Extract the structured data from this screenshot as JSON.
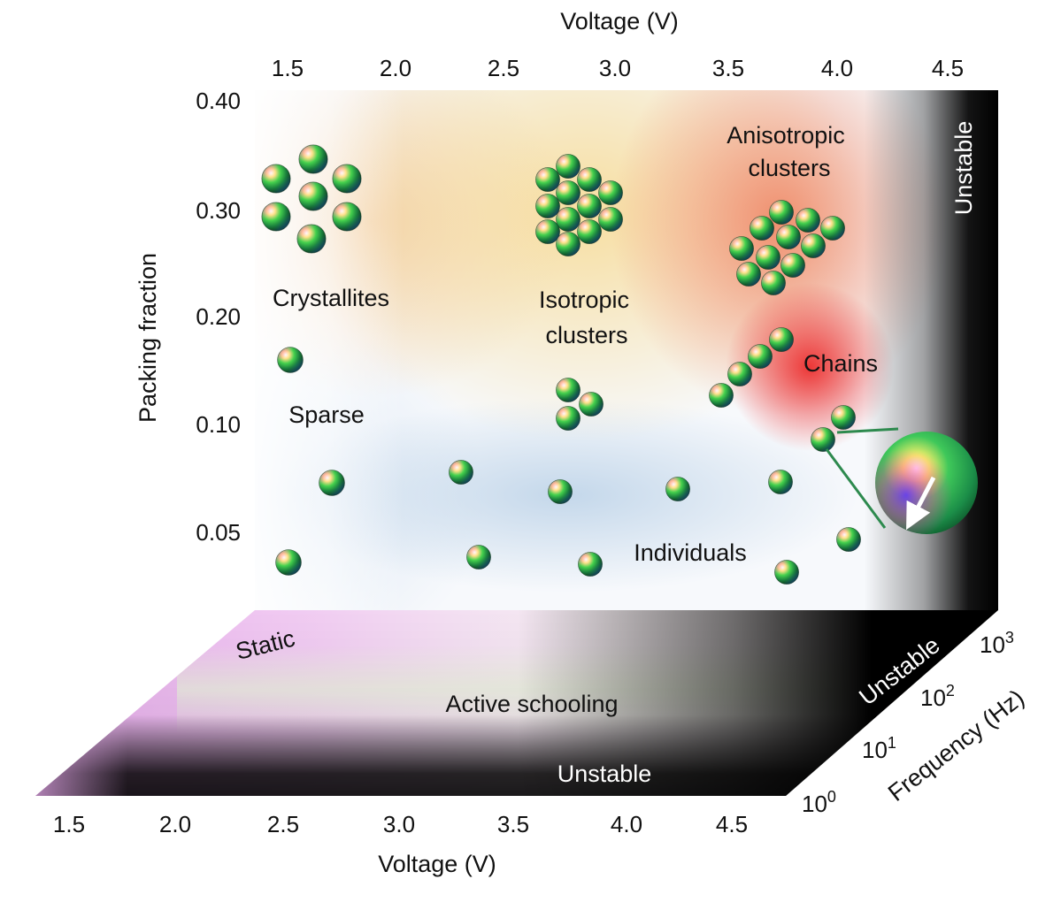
{
  "top_axis": {
    "title": "Voltage (V)",
    "ticks": [
      "1.5",
      "2.0",
      "2.5",
      "3.0",
      "3.5",
      "4.0",
      "4.5"
    ]
  },
  "left_axis": {
    "title": "Packing fraction",
    "ticks": [
      "0.40",
      "0.30",
      "0.20",
      "0.10",
      "0.05"
    ]
  },
  "bottom_axis": {
    "title": "Voltage (V)",
    "ticks": [
      "1.5",
      "2.0",
      "2.5",
      "3.0",
      "3.5",
      "4.0",
      "4.5"
    ]
  },
  "frequency_axis": {
    "title": "Frequency (Hz)",
    "ticks": [
      {
        "base": "10",
        "exp": "0"
      },
      {
        "base": "10",
        "exp": "1"
      },
      {
        "base": "10",
        "exp": "2"
      },
      {
        "base": "10",
        "exp": "3"
      }
    ]
  },
  "regions": {
    "crystallites": "Crystallites",
    "isotropic_1": "Isotropic",
    "isotropic_2": "clusters",
    "anisotropic_1": "Anisotropic",
    "anisotropic_2": "clusters",
    "chains": "Chains",
    "sparse": "Sparse",
    "individuals": "Individuals",
    "unstable_wall": "Unstable"
  },
  "floor": {
    "static": "Static",
    "active": "Active schooling",
    "unstable_bottom": "Unstable",
    "unstable_right": "Unstable"
  },
  "colors": {
    "wall_unstable": "#000000",
    "crystallite_zone": "#f3c9a0",
    "isotropic_zone": "#f6dd9a",
    "anisotropic_zone": "#f08a6a",
    "chains_zone": "#ee3a3a",
    "individuals_zone": "#bcd3e8",
    "static_zone": "#e9b2ee",
    "zoom_circle": "#2fa063",
    "connector": "#2d8a4e"
  }
}
